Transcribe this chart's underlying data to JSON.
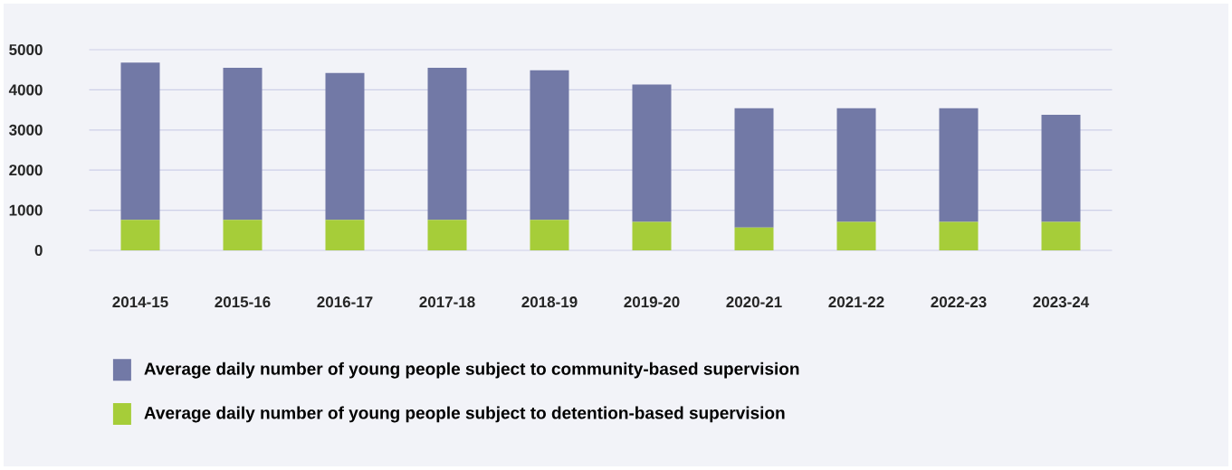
{
  "chart_data": {
    "type": "bar",
    "stacked": true,
    "categories": [
      "2014-15",
      "2015-16",
      "2016-17",
      "2017-18",
      "2018-19",
      "2019-20",
      "2020-21",
      "2021-22",
      "2022-23",
      "2023-24"
    ],
    "series": [
      {
        "name": "Average daily number of young people subject to detention-based supervision",
        "color": "#a6cd39",
        "values": [
          760,
          760,
          760,
          760,
          760,
          710,
          570,
          710,
          710,
          710
        ]
      },
      {
        "name": "Average daily number of young people subject to community-based supervision",
        "color": "#7279a6",
        "values": [
          3920,
          3790,
          3660,
          3790,
          3730,
          3420,
          2970,
          2830,
          2830,
          2670
        ]
      }
    ],
    "ylim": [
      0,
      5000
    ],
    "yticks": [
      0,
      1000,
      2000,
      3000,
      4000,
      5000
    ],
    "grid": "y",
    "legend": "bottom"
  }
}
